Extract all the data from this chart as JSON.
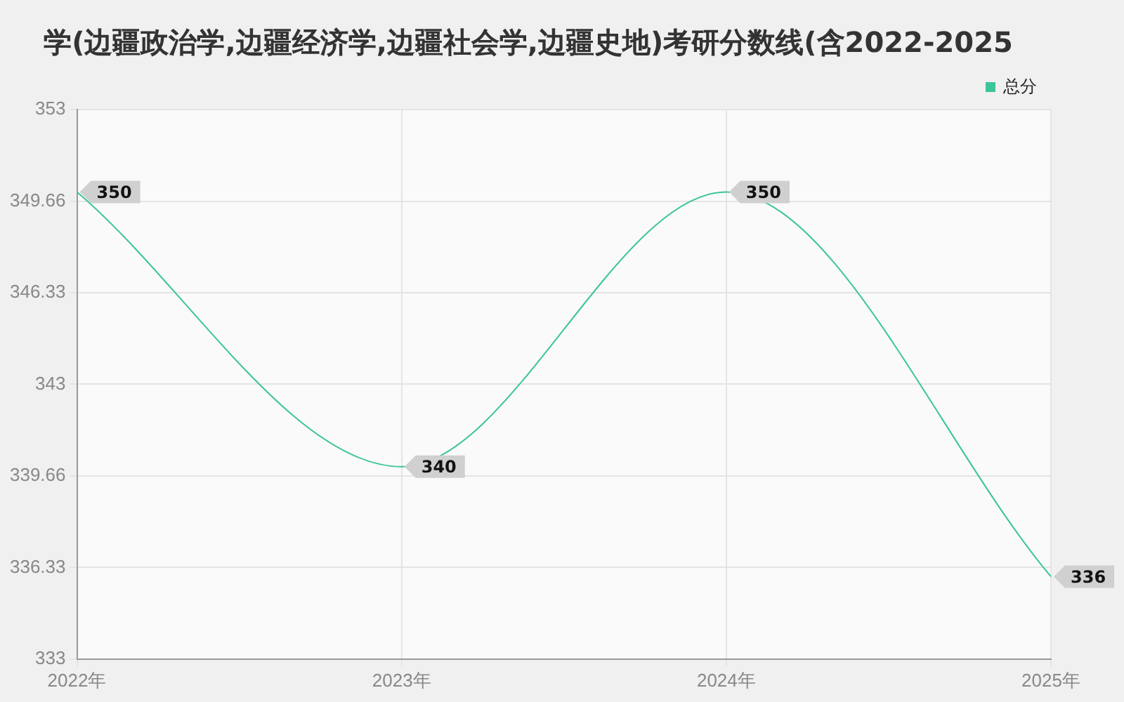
{
  "chart_data": {
    "type": "line",
    "title": "学(边疆政治学,边疆经济学,边疆社会学,边疆史地)考研分数线(含2022-2025",
    "categories": [
      "2022年",
      "2023年",
      "2024年",
      "2025年"
    ],
    "series": [
      {
        "name": "总分",
        "color": "#3cc49a",
        "values": [
          350,
          340,
          350,
          336
        ]
      }
    ],
    "ylim": [
      333,
      353
    ],
    "yticks": [
      333,
      336.33,
      339.66,
      343,
      346.33,
      349.66,
      353
    ],
    "grid": true,
    "legend": "top right",
    "data_labels": true,
    "marker": "none",
    "line_style": "solid"
  }
}
